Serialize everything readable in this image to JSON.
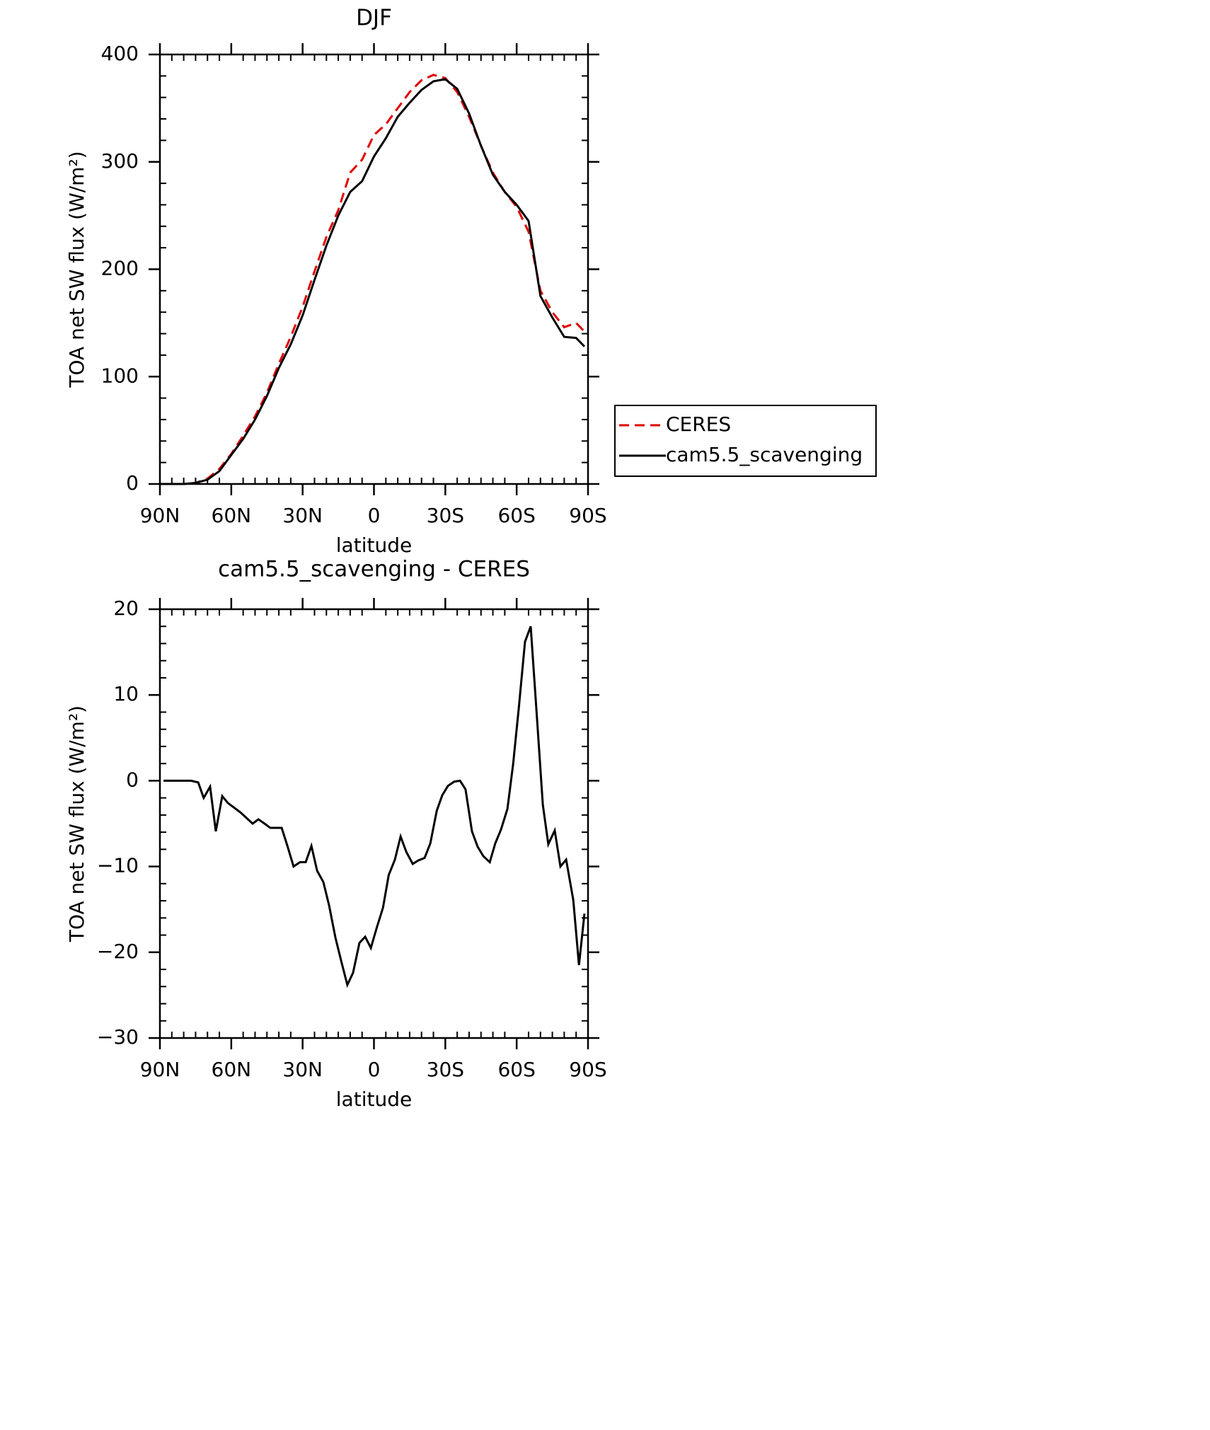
{
  "chart_data": [
    {
      "type": "line",
      "title": "DJF",
      "xlabel": "latitude",
      "ylabel": "TOA net SW flux (W/m²)",
      "x": [
        90,
        85,
        80,
        75,
        70,
        65,
        60,
        55,
        50,
        45,
        40,
        35,
        30,
        25,
        20,
        15,
        10,
        5,
        0,
        -5,
        -10,
        -15,
        -20,
        -25,
        -30,
        -35,
        -40,
        -45,
        -50,
        -55,
        -60,
        -65,
        -70,
        -75,
        -80,
        -85,
        -88.5
      ],
      "series": [
        {
          "name": "CERES",
          "color": "#e00000",
          "line_style": "dashed",
          "values": [
            0,
            0,
            0,
            1,
            5,
            14,
            28,
            45,
            63,
            85,
            112,
            137,
            165,
            198,
            230,
            255,
            290,
            302,
            325,
            335,
            350,
            365,
            376,
            381,
            378,
            365,
            342,
            315,
            290,
            272,
            258,
            235,
            180,
            160,
            146,
            150,
            142
          ]
        },
        {
          "name": "cam5.5_scavenging",
          "color": "#000000",
          "line_style": "solid",
          "values": [
            0,
            0,
            0,
            1,
            4,
            12,
            27,
            42,
            60,
            82,
            108,
            130,
            157,
            190,
            222,
            250,
            272,
            282,
            305,
            322,
            342,
            355,
            367,
            375,
            377,
            368,
            345,
            315,
            288,
            272,
            260,
            245,
            175,
            155,
            137,
            136,
            128
          ]
        }
      ],
      "xlim": [
        90,
        -90
      ],
      "xticks": [
        {
          "value": 90,
          "label": "90N"
        },
        {
          "value": 60,
          "label": "60N"
        },
        {
          "value": 30,
          "label": "30N"
        },
        0,
        {
          "value": -30,
          "label": "30S"
        },
        {
          "value": -60,
          "label": "60S"
        },
        {
          "value": -90,
          "label": "90S"
        }
      ],
      "ylim": [
        0,
        400
      ],
      "yticks": [
        0,
        100,
        200,
        300,
        400
      ],
      "legend": "right"
    },
    {
      "type": "line",
      "title": "cam5.5_scavenging - CERES",
      "xlabel": "latitude",
      "ylabel": "TOA net SW flux (W/m²)",
      "x": [
        88.5,
        82.9,
        76.9,
        73.9,
        71.6,
        68.9,
        66.5,
        63.8,
        61.4,
        56.1,
        51.0,
        48.6,
        46.0,
        43.6,
        38.8,
        36.4,
        33.8,
        31.1,
        28.7,
        26.3,
        23.9,
        21.3,
        18.9,
        16.2,
        13.8,
        11.2,
        8.8,
        6.1,
        3.7,
        1.3,
        -1.1,
        -3.8,
        -6.2,
        -8.8,
        -11.2,
        -13.6,
        -16.3,
        -18.6,
        -21.3,
        -23.7,
        -26.4,
        -28.7,
        -31.1,
        -33.8,
        -36.2,
        -38.5,
        -41.2,
        -43.6,
        -46.0,
        -48.7,
        -51.0,
        -53.4,
        -56.1,
        -58.5,
        -60.9,
        -63.5,
        -65.9,
        -68.3,
        -71.0,
        -73.3,
        -76.0,
        -78.4,
        -80.8,
        -83.8,
        -86.2,
        -88.5
      ],
      "series": [
        {
          "color": "#000000",
          "line_style": "solid",
          "values": [
            0,
            0,
            0,
            -0.2,
            -2,
            -0.7,
            -5.9,
            -1.8,
            -2.6,
            -3.7,
            -5,
            -4.5,
            -5,
            -5.5,
            -5.5,
            -7.6,
            -10,
            -9.5,
            -9.5,
            -7.6,
            -10.5,
            -11.8,
            -14.5,
            -18.3,
            -21,
            -23.8,
            -22.4,
            -18.9,
            -18.2,
            -19.5,
            -17.2,
            -14.8,
            -11,
            -9.2,
            -6.5,
            -8.3,
            -9.7,
            -9.3,
            -9,
            -7.3,
            -3.5,
            -1.7,
            -0.6,
            -0.1,
            0,
            -1,
            -5.9,
            -7.7,
            -8.8,
            -9.5,
            -7.3,
            -5.7,
            -3.3,
            1.9,
            8.5,
            16.2,
            18,
            8.3,
            -2.8,
            -7.4,
            -5.8,
            -10,
            -9.2,
            -13.9,
            -21.5,
            -15.5
          ]
        }
      ],
      "xlim": [
        90,
        -90
      ],
      "xticks": [
        {
          "value": 90,
          "label": "90N"
        },
        {
          "value": 60,
          "label": "60N"
        },
        {
          "value": 30,
          "label": "30N"
        },
        0,
        {
          "value": -30,
          "label": "30S"
        },
        {
          "value": -60,
          "label": "60S"
        },
        {
          "value": -90,
          "label": "90S"
        }
      ],
      "ylim": [
        -30,
        20
      ],
      "yticks": [
        {
          "value": -30,
          "label": "−30"
        },
        {
          "value": -20,
          "label": "−20"
        },
        {
          "value": -10,
          "label": "−10"
        },
        0,
        10,
        20
      ]
    }
  ]
}
